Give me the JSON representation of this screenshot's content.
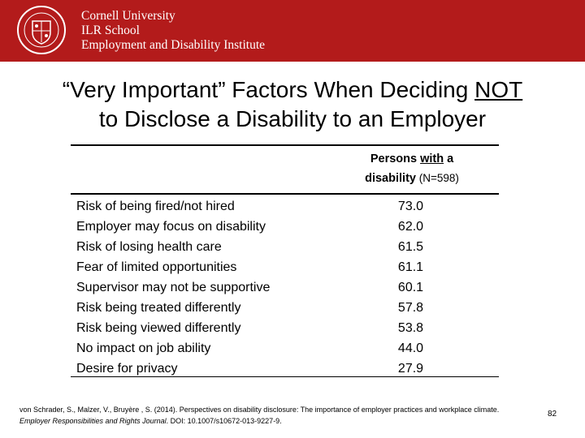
{
  "header": {
    "institution_lines": [
      "Cornell University",
      "ILR School",
      "Employment and Disability Institute"
    ],
    "brand_color": "#b31b1b",
    "seal_icon": "cornell-seal-logo"
  },
  "slide": {
    "title_part1": "“Very Important” Factors When Deciding ",
    "title_emphasis": "NOT",
    "title_part2": "to Disclose a Disability to an Employer"
  },
  "table": {
    "column_header": {
      "part1": "Persons ",
      "emphasis": "with",
      "part2": " a",
      "line2_bold": "disability",
      "line2_note": " (N=598)"
    },
    "rows": [
      {
        "label": "Risk of being fired/not hired",
        "value": "73.0"
      },
      {
        "label": "Employer may focus on disability",
        "value": "62.0"
      },
      {
        "label": "Risk of losing health care",
        "value": "61.5"
      },
      {
        "label": "Fear of limited opportunities",
        "value": "61.1"
      },
      {
        "label": "Supervisor may not be supportive",
        "value": "60.1"
      },
      {
        "label": "Risk being treated differently",
        "value": "57.8"
      },
      {
        "label": "Risk being viewed differently",
        "value": "53.8"
      },
      {
        "label": "No impact on job ability",
        "value": "44.0"
      },
      {
        "label": "Desire for privacy",
        "value": "27.9"
      }
    ]
  },
  "footer": {
    "citation_part1": "von Schrader, S., Malzer, V., Bruyère , S. (2014).  Perspectives on disability disclosure: The importance of employer practices and workplace climate. ",
    "citation_journal": "Employer Responsibilities and Rights Journal",
    "citation_part2": ".   DOI: 10.1007/s10672-013-9227-9.",
    "page_number": "82"
  }
}
